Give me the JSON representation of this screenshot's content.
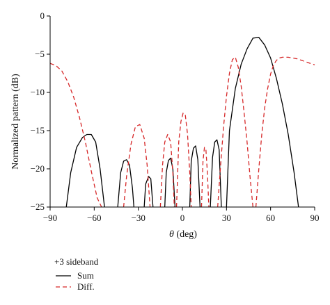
{
  "chart_data": {
    "type": "line",
    "xlabel_symbol": "θ",
    "xlabel_unit": " (deg)",
    "ylabel": "Normalized pattern (dB)",
    "xlim": [
      -90,
      90
    ],
    "ylim": [
      -25,
      0
    ],
    "xticks": [
      -90,
      -60,
      -30,
      0,
      30,
      60,
      90
    ],
    "xtick_labels": [
      "−90",
      "−60",
      "−30",
      "0",
      "30",
      "60",
      "90"
    ],
    "yticks": [
      0,
      -5,
      -10,
      -15,
      -20,
      -25
    ],
    "ytick_labels": [
      "0",
      "−5",
      "−10",
      "−15",
      "−20",
      "−25"
    ],
    "grid": false,
    "legend": {
      "title": "+3 sideband",
      "placement": "below"
    },
    "series": [
      {
        "name": "Sum",
        "color": "#000000",
        "style": "solid",
        "segments": [
          {
            "x": [
              -79,
              -76,
              -72,
              -68,
              -65,
              -62,
              -59,
              -56,
              -53
            ],
            "y": [
              -25,
              -20.5,
              -17.2,
              -15.9,
              -15.5,
              -15.5,
              -16.5,
              -20,
              -25
            ]
          },
          {
            "x": [
              -44,
              -42,
              -40,
              -38,
              -36,
              -34,
              -33
            ],
            "y": [
              -25,
              -20.5,
              -19.0,
              -18.8,
              -19.5,
              -22.5,
              -25
            ]
          },
          {
            "x": [
              -26,
              -25,
              -23,
              -21.5,
              -20
            ],
            "y": [
              -25,
              -22.0,
              -21.0,
              -21.3,
              -25
            ]
          },
          {
            "x": [
              -12,
              -11,
              -9.5,
              -8,
              -6.5,
              -5
            ],
            "y": [
              -25,
              -20.5,
              -18.9,
              -18.6,
              -20.0,
              -25
            ]
          },
          {
            "x": [
              5,
              6,
              7.5,
              9,
              10.5,
              12
            ],
            "y": [
              -25,
              -19.0,
              -17.3,
              -17.0,
              -18.8,
              -25
            ]
          },
          {
            "x": [
              19,
              20.5,
              22,
              23.5,
              25,
              26.5
            ],
            "y": [
              -25,
              -18.5,
              -16.5,
              -16.2,
              -17.5,
              -25
            ]
          },
          {
            "x": [
              30,
              32,
              36,
              40,
              44,
              48,
              52,
              56,
              60,
              64,
              68,
              72,
              76,
              79
            ],
            "y": [
              -25,
              -15,
              -9.5,
              -6.3,
              -4.3,
              -2.9,
              -2.8,
              -3.8,
              -5.5,
              -8.2,
              -11.5,
              -15.5,
              -20.5,
              -25
            ]
          }
        ]
      },
      {
        "name": "Diff.",
        "color": "#d62728",
        "style": "dashed",
        "segments": [
          {
            "x": [
              -90,
              -86,
              -82,
              -78,
              -74,
              -70,
              -66,
              -62,
              -58,
              -55
            ],
            "y": [
              -6.2,
              -6.5,
              -7.2,
              -8.6,
              -10.6,
              -13.3,
              -16.5,
              -20.3,
              -23.8,
              -25
            ]
          },
          {
            "x": [
              -40,
              -38,
              -35,
              -32,
              -29,
              -26,
              -24,
              -22
            ],
            "y": [
              -25,
              -21.0,
              -16.8,
              -14.5,
              -14.2,
              -16.0,
              -19.5,
              -25
            ]
          },
          {
            "x": [
              -15,
              -13.5,
              -12,
              -10,
              -8,
              -6.5,
              -5.5
            ],
            "y": [
              -25,
              -19.5,
              -16.5,
              -15.5,
              -16.5,
              -20.5,
              -25
            ]
          },
          {
            "x": [
              -4,
              -2.5,
              -1,
              0.5,
              2,
              3.5,
              5,
              6
            ],
            "y": [
              -25,
              -16.5,
              -13.8,
              -12.7,
              -13.0,
              -15.5,
              -20.5,
              -25
            ]
          },
          {
            "x": [
              13,
              14,
              15,
              16,
              17,
              18
            ],
            "y": [
              -25,
              -19.0,
              -17.2,
              -17.5,
              -20.5,
              -25
            ]
          },
          {
            "x": [
              24,
              26,
              28,
              30,
              32,
              34,
              36,
              38,
              40,
              42,
              44,
              46,
              48
            ],
            "y": [
              -25,
              -19.5,
              -14.5,
              -10.5,
              -7.5,
              -5.7,
              -5.4,
              -6.7,
              -9.2,
              -12.7,
              -16.5,
              -21.0,
              -25
            ]
          },
          {
            "x": [
              50,
              52,
              54,
              56,
              58,
              60,
              62,
              64,
              66,
              68,
              70,
              72,
              75,
              78,
              81,
              84,
              87,
              90
            ],
            "y": [
              -25,
              -20.0,
              -15.5,
              -12.0,
              -9.5,
              -7.6,
              -6.4,
              -5.8,
              -5.5,
              -5.4,
              -5.4,
              -5.4,
              -5.5,
              -5.6,
              -5.8,
              -6.0,
              -6.2,
              -6.4
            ]
          }
        ]
      }
    ]
  }
}
